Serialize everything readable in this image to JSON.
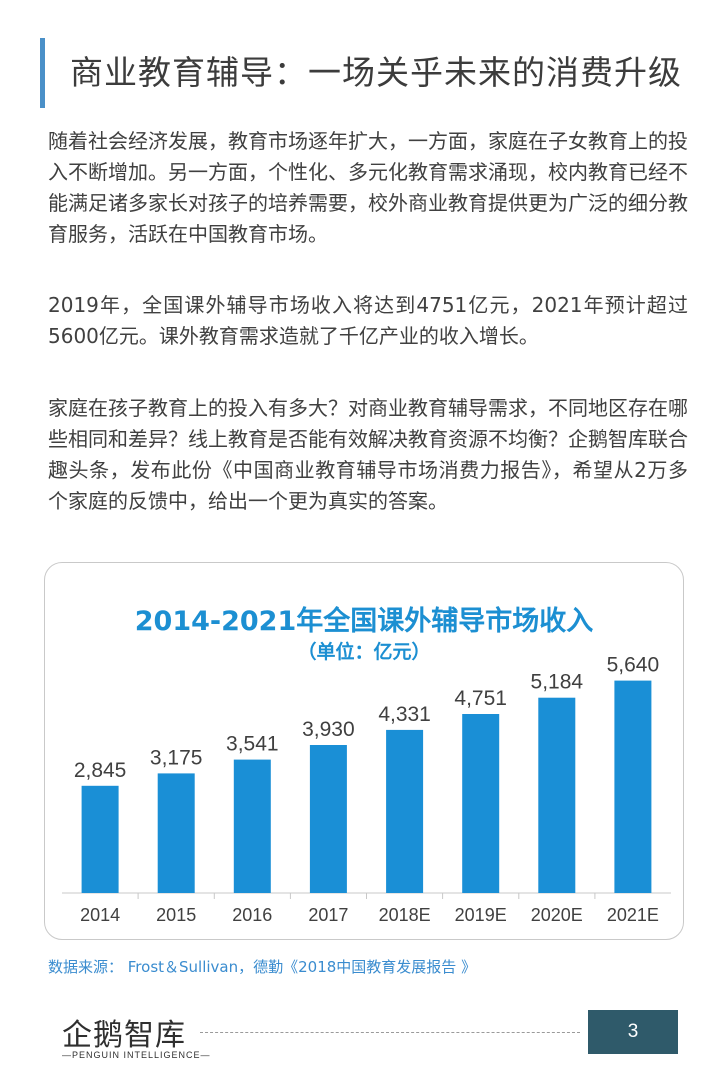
{
  "header": {
    "title": "商业教育辅导：一场关乎未来的消费升级"
  },
  "paragraphs": [
    "随着社会经济发展，教育市场逐年扩大，一方面，家庭在子女教育上的投入不断增加。另一方面，个性化、多元化教育需求涌现，校内教育已经不能满足诸多家长对孩子的培养需要，校外商业教育提供更为广泛的细分教育服务，活跃在中国教育市场。",
    "2019年，全国课外辅导市场收入将达到4751亿元，2021年预计超过5600亿元。课外教育需求造就了千亿产业的收入增长。",
    "家庭在孩子教育上的投入有多大？对商业教育辅导需求，不同地区存在哪些相同和差异？线上教育是否能有效解决教育资源不均衡？企鹅智库联合趣头条，发布此份《中国商业教育辅导市场消费力报告》，希望从2万多个家庭的反馈中，给出一个更为真实的答案。"
  ],
  "chart_data": {
    "type": "bar",
    "title": "2014-2021年全国课外辅导市场收入",
    "subtitle": "（单位：亿元）",
    "categories": [
      "2014",
      "2015",
      "2016",
      "2017",
      "2018E",
      "2019E",
      "2020E",
      "2021E"
    ],
    "values": [
      2845,
      3175,
      3541,
      3930,
      4331,
      4751,
      5184,
      5640
    ],
    "value_labels": [
      "2,845",
      "3,175",
      "3,541",
      "3,930",
      "4,331",
      "4,751",
      "5,184",
      "5,640"
    ],
    "ylim": [
      0,
      6000
    ],
    "bar_color": "#1a8fd6",
    "grid": false,
    "legend": "none"
  },
  "source": "数据来源： Frost＆Sullivan，德勤《2018中国教育发展报告 》",
  "footer": {
    "logo_text": "企鹅智库",
    "logo_sub": "—PENGUIN INTELLIGENCE—",
    "page_number": "3"
  },
  "colors": {
    "accent": "#4a90c8",
    "chart_title": "#1c8fd2",
    "page_badge": "#2f5a6a"
  }
}
